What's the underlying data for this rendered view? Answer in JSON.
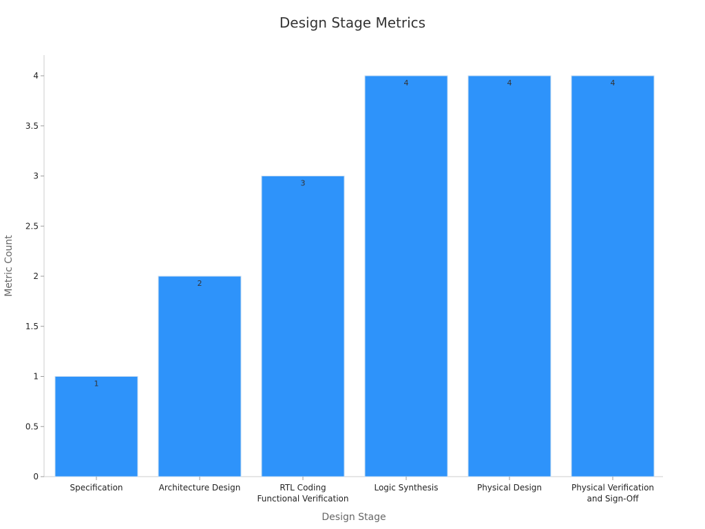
{
  "chart_data": {
    "type": "bar",
    "title": "Design Stage Metrics",
    "xlabel": "Design Stage",
    "ylabel": "Metric Count",
    "categories": [
      [
        "Specification"
      ],
      [
        "Architecture Design"
      ],
      [
        "RTL Coding",
        "Functional Verification"
      ],
      [
        "Logic Synthesis"
      ],
      [
        "Physical Design"
      ],
      [
        "Physical Verification",
        "and Sign-Off"
      ]
    ],
    "values": [
      1,
      2,
      3,
      4,
      4,
      4
    ],
    "ylim": [
      0,
      4.2
    ],
    "yticks": [
      0,
      0.5,
      1,
      1.5,
      2,
      2.5,
      3,
      3.5,
      4
    ],
    "ytick_labels": [
      "0",
      "0.5",
      "1",
      "1.5",
      "2",
      "2.5",
      "3",
      "3.5",
      "4"
    ],
    "data_labels": [
      "1",
      "2",
      "3",
      "4",
      "4",
      "4"
    ],
    "bar_color": "#2e93fa",
    "bar_edge_color": "#c7dcf0",
    "grid": false,
    "legend": "none"
  }
}
